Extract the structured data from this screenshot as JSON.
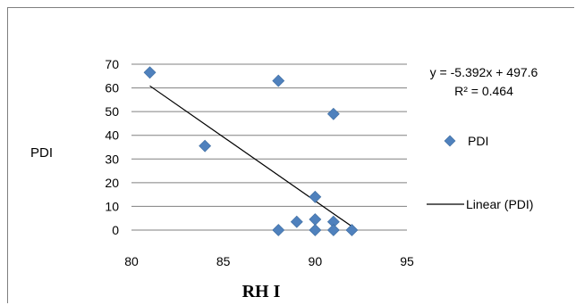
{
  "chart_data": {
    "type": "scatter",
    "ylabel": "PDI",
    "xlabel": "RH I",
    "xlim": [
      80,
      95
    ],
    "ylim": [
      0,
      70
    ],
    "x_ticks": [
      "80",
      "85",
      "90",
      "95"
    ],
    "y_ticks": [
      "0",
      "10",
      "20",
      "30",
      "40",
      "50",
      "60",
      "70"
    ],
    "grid": "horizontal",
    "legend_position": "right",
    "series": [
      {
        "name": "PDI",
        "marker": "diamond",
        "color": "#4f81bd",
        "points": [
          {
            "x": 81,
            "y": 66.5
          },
          {
            "x": 84,
            "y": 35.5
          },
          {
            "x": 88,
            "y": 63
          },
          {
            "x": 88,
            "y": 0
          },
          {
            "x": 89,
            "y": 3.5
          },
          {
            "x": 90,
            "y": 14
          },
          {
            "x": 90,
            "y": 4.5
          },
          {
            "x": 90,
            "y": 0
          },
          {
            "x": 91,
            "y": 49
          },
          {
            "x": 91,
            "y": 3.5
          },
          {
            "x": 91,
            "y": 0
          },
          {
            "x": 92,
            "y": 0
          }
        ]
      }
    ],
    "trendline": {
      "name": "Linear (PDI)",
      "slope": -5.392,
      "intercept": 497.6,
      "x_range": [
        81,
        92
      ],
      "color": "#000000",
      "equation_label": "y = -5.392x + 497.6",
      "r2_label": "R² = 0.464"
    }
  }
}
